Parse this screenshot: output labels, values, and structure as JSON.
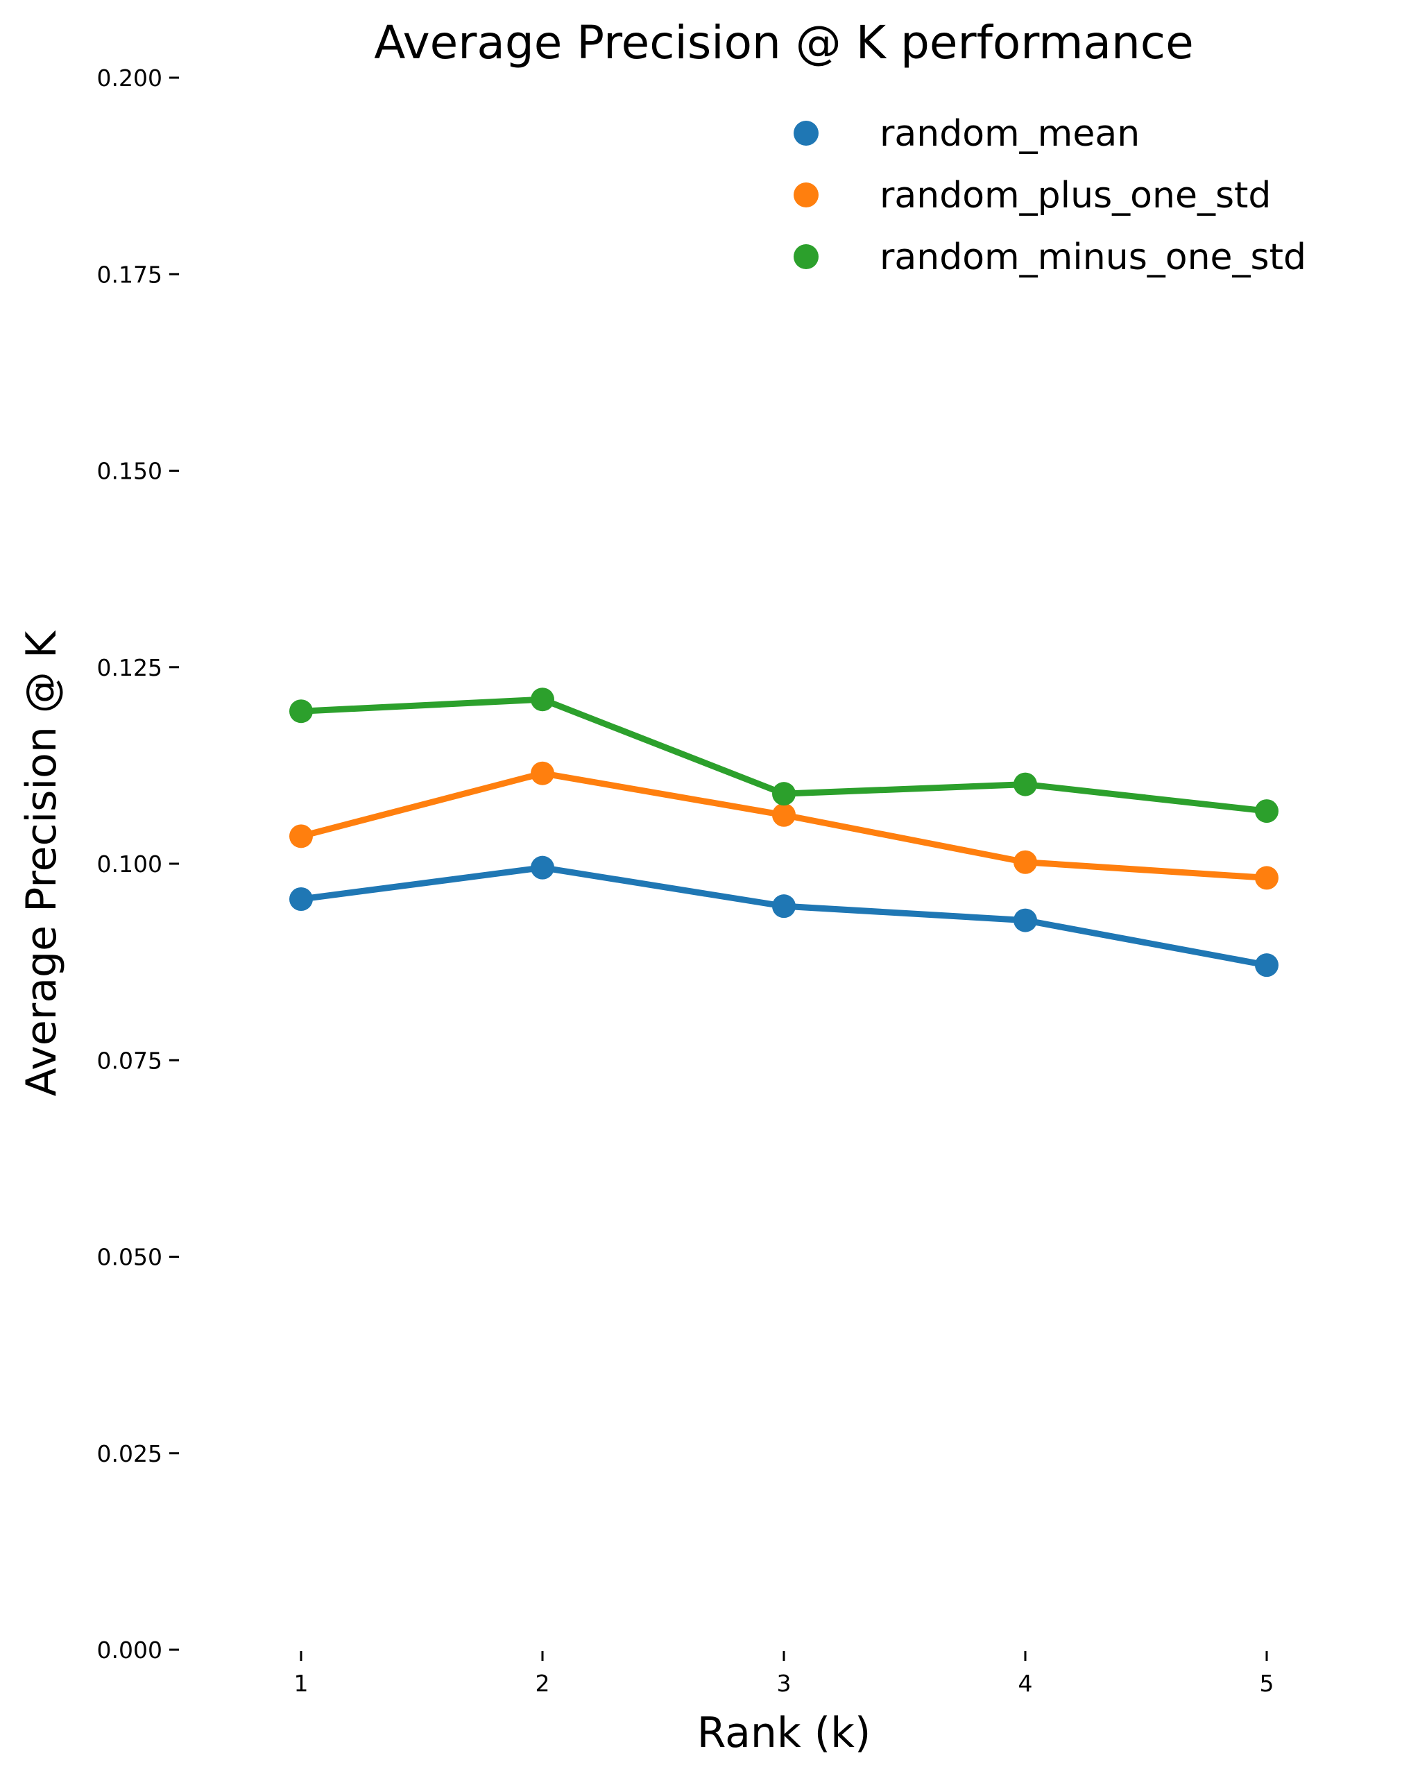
{
  "chart_data": {
    "type": "line",
    "title": "Average Precision @ K performance",
    "xlabel": "Rank (k)",
    "ylabel": "Average Precision @ K",
    "x": [
      1,
      2,
      3,
      4,
      5
    ],
    "x_ticks": [
      "1",
      "2",
      "3",
      "4",
      "5"
    ],
    "xlim": [
      0.5,
      5.5
    ],
    "ylim": [
      0,
      0.2
    ],
    "y_ticks": [
      "0.000",
      "0.025",
      "0.050",
      "0.075",
      "0.100",
      "0.125",
      "0.150",
      "0.175",
      "0.200"
    ],
    "y_tick_values": [
      0,
      0.025,
      0.05,
      0.075,
      0.1,
      0.125,
      0.15,
      0.175,
      0.2
    ],
    "grid": false,
    "legend_position": "top-right",
    "series": [
      {
        "name": "random_mean",
        "color": "#1f77b4",
        "values": [
          0.0955,
          0.0995,
          0.0946,
          0.0928,
          0.0871
        ]
      },
      {
        "name": "random_plus_one_std",
        "color": "#ff7f0e",
        "values": [
          0.1035,
          0.1115,
          0.1062,
          0.1002,
          0.0982
        ]
      },
      {
        "name": "random_minus_one_std",
        "color": "#2ca02c",
        "values": [
          0.1194,
          0.1209,
          0.1089,
          0.1101,
          0.1067
        ]
      }
    ]
  }
}
